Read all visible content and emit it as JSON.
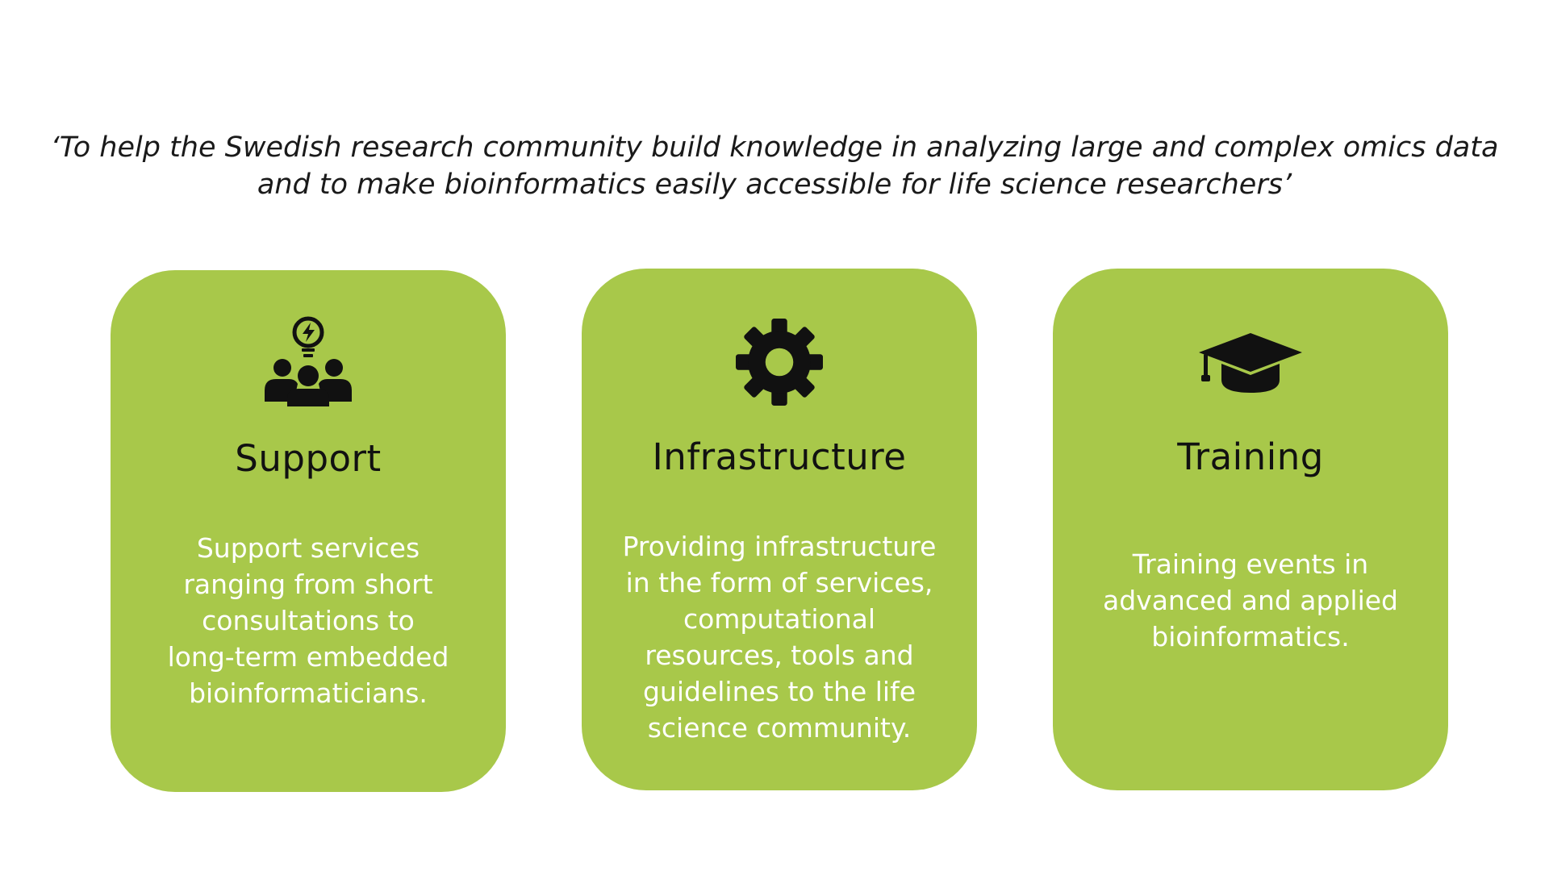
{
  "theme": {
    "card_color": "#a8c84a",
    "title_color": "#111111",
    "description_color": "#ffffff",
    "icon_color": "#111111"
  },
  "quote": {
    "lines": [
      "‘To help the Swedish research community build knowledge in analyzing large and complex omics data",
      "and to make bioinformatics easily accessible for life science researchers’"
    ]
  },
  "cards": [
    {
      "icon": "team-idea-icon",
      "title": "Support",
      "description_lines": [
        "Support services",
        "ranging from short",
        "consultations to",
        "long-term embedded",
        "bioinformaticians."
      ]
    },
    {
      "icon": "gear-icon",
      "title": "Infrastructure",
      "description_lines": [
        "Providing infrastructure",
        "in the form of services,",
        "computational",
        "resources, tools and",
        "guidelines to the life",
        "science community."
      ]
    },
    {
      "icon": "graduation-cap-icon",
      "title": "Training",
      "description_lines": [
        "Training events in",
        "advanced and applied",
        "bioinformatics."
      ]
    }
  ]
}
